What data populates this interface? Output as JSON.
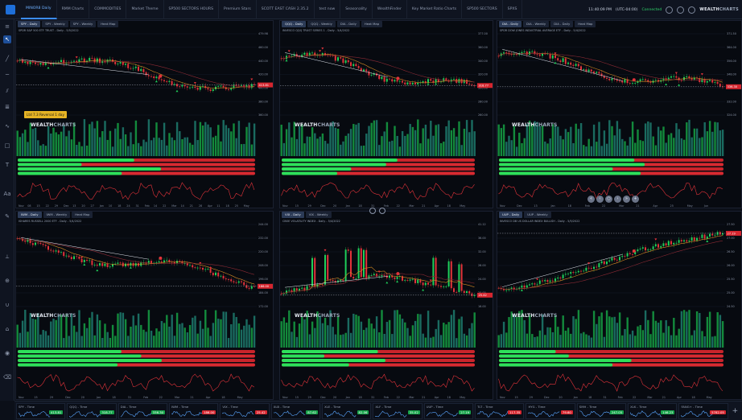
{
  "topbar": {
    "tabs": [
      "MINOR8 Daily",
      "RMM Charts",
      "COMMODITIES",
      "Market Theme",
      "SP500 SECTORS HOURS",
      "Premium Stars",
      "SCOTT EAST CASH 2.35.2",
      "test now",
      "Seasonality",
      "WealthFinder",
      "Key Market Ratio Charts",
      "SP500 SECTORS",
      "SPXS"
    ],
    "active_tab": 0,
    "time": "11:40:09 PM",
    "timezone": "(UTC-04:00)",
    "status": "Connected",
    "brand_bold": "WEALTH",
    "brand_light": "CHARTS"
  },
  "watermark": {
    "bold": "WEALTH",
    "light": "CHARTS"
  },
  "panels": [
    {
      "tabs": [
        "SPY - Daily",
        "SPY - Weekly",
        "SPY - Weekly",
        "Heat Map"
      ],
      "title": "SPDR S&P 500 ETF TRUST - Daily - 5/5/2022",
      "y_labels": [
        "479.98",
        "460.00",
        "440.00",
        "420.00",
        "400.00",
        "380.00",
        "360.00"
      ],
      "last_price": "413.81",
      "x_labels": [
        "Nov",
        "08",
        "15",
        "22",
        "29",
        "Dec",
        "13",
        "20",
        "27",
        "Jan",
        "10",
        "18",
        "24",
        "31",
        "Feb",
        "14",
        "22",
        "Mar",
        "14",
        "21",
        "28",
        "Apr",
        "11",
        "18",
        "25",
        "May"
      ],
      "tooltip": "Ltd 7.3 Reversal 1 day"
    },
    {
      "tabs": [
        "QQQ - Daily",
        "QQQ - Weekly",
        "DIA - Daily",
        "Heat Map"
      ],
      "title": "INVESCO QQQ TRUST SERIES 1 - Daily - 5/4/2022",
      "y_labels": [
        "377.00",
        "360.00",
        "340.00",
        "320.00",
        "300.00",
        "280.00",
        "260.00"
      ],
      "last_price": "318.77",
      "x_labels": [
        "Nov",
        "15",
        "29",
        "Dec",
        "20",
        "Jan",
        "18",
        "31",
        "Feb",
        "22",
        "Mar",
        "21",
        "Apr",
        "18",
        "May"
      ]
    },
    {
      "tabs": [
        "DIA - Daily",
        "DIA - Weekly",
        "DIA - Daily",
        "Heat Map"
      ],
      "title": "SPDR DOW JONES INDUSTRIAL AVERAGE ETF - Daily - 5/4/2022",
      "y_labels": [
        "371.50",
        "364.00",
        "356.00",
        "348.00",
        "340.00",
        "332.00",
        "324.00"
      ],
      "last_price": "336.30",
      "x_labels": [
        "Nov",
        "Dec",
        "13",
        "Jan",
        "18",
        "Feb",
        "22",
        "Mar",
        "21",
        "Apr",
        "25",
        "May",
        "Jun"
      ]
    },
    {
      "tabs": [
        "IWM - Daily",
        "IWM - Weekly",
        "Heat Map"
      ],
      "title": "ISHARES RUSSELL 2000 ETF - Daily - 5/4/2022",
      "y_labels": [
        "244.00",
        "232.00",
        "220.00",
        "208.00",
        "196.00",
        "184.00",
        "172.00"
      ],
      "last_price": "186.00",
      "x_labels": [
        "Nov",
        "15",
        "29",
        "Dec",
        "20",
        "Jan",
        "18",
        "31",
        "Feb",
        "22",
        "Mar",
        "21",
        "Apr",
        "18",
        "May"
      ]
    },
    {
      "tabs": [
        "VIX - Daily",
        "VIX - Weekly"
      ],
      "title": "CBOE VOLATILITY INDEX - Daily - 5/4/2022",
      "y_labels": [
        "41.12",
        "36.00",
        "32.00",
        "28.00",
        "24.00",
        "20.00",
        "16.00"
      ],
      "last_price": "25.42",
      "x_labels": [
        "Nov",
        "15",
        "29",
        "Dec",
        "20",
        "Jan",
        "18",
        "31",
        "Feb",
        "22",
        "Mar",
        "21",
        "Apr",
        "18",
        "May"
      ]
    },
    {
      "tabs": [
        "UUP - Daily",
        "UUP - Weekly"
      ],
      "title": "INVESCO DB US DOLLAR INDEX BULLISH - Daily - 5/5/2022",
      "y_labels": [
        "27.50",
        "27.00",
        "26.50",
        "26.00",
        "25.50",
        "25.00",
        "24.50"
      ],
      "last_price": "27.19",
      "x_labels": [
        "Nov",
        "15",
        "29",
        "Dec",
        "20",
        "Jan",
        "18",
        "31",
        "Feb",
        "22",
        "Mar",
        "21",
        "Apr",
        "18",
        "May"
      ]
    }
  ],
  "nav_buttons": [
    "«",
    "‹",
    "○",
    "›",
    "»",
    "+"
  ],
  "tickers": [
    {
      "sym": "SPY - Time",
      "val": "413.81",
      "dir": "up"
    },
    {
      "sym": "QQQ - Time",
      "val": "318.77",
      "dir": "up"
    },
    {
      "sym": "DIA - Time",
      "val": "336.30",
      "dir": "up"
    },
    {
      "sym": "IWM - Time",
      "val": "186.00",
      "dir": "down"
    },
    {
      "sym": "VIX - Time",
      "val": "25.42",
      "dir": "down"
    },
    {
      "sym": "XLB - Time",
      "val": "87.62",
      "dir": "up"
    },
    {
      "sym": "XLE - Time",
      "val": "82.06",
      "dir": "up"
    },
    {
      "sym": "XLF - Time",
      "val": "35.02",
      "dir": "up"
    },
    {
      "sym": "UUP - Time",
      "val": "27.19",
      "dir": "up"
    },
    {
      "sym": "TLT - Time",
      "val": "117.35",
      "dir": "down"
    },
    {
      "sym": "HYG - Time",
      "val": "79.60",
      "dir": "down"
    },
    {
      "sym": "SMH - Time",
      "val": "247.05",
      "dir": "up"
    },
    {
      "sym": "XLK - Time",
      "val": "146.23",
      "dir": "up"
    },
    {
      "sym": "FANG+ - Time",
      "val": "5782.05",
      "dir": "down"
    }
  ]
}
